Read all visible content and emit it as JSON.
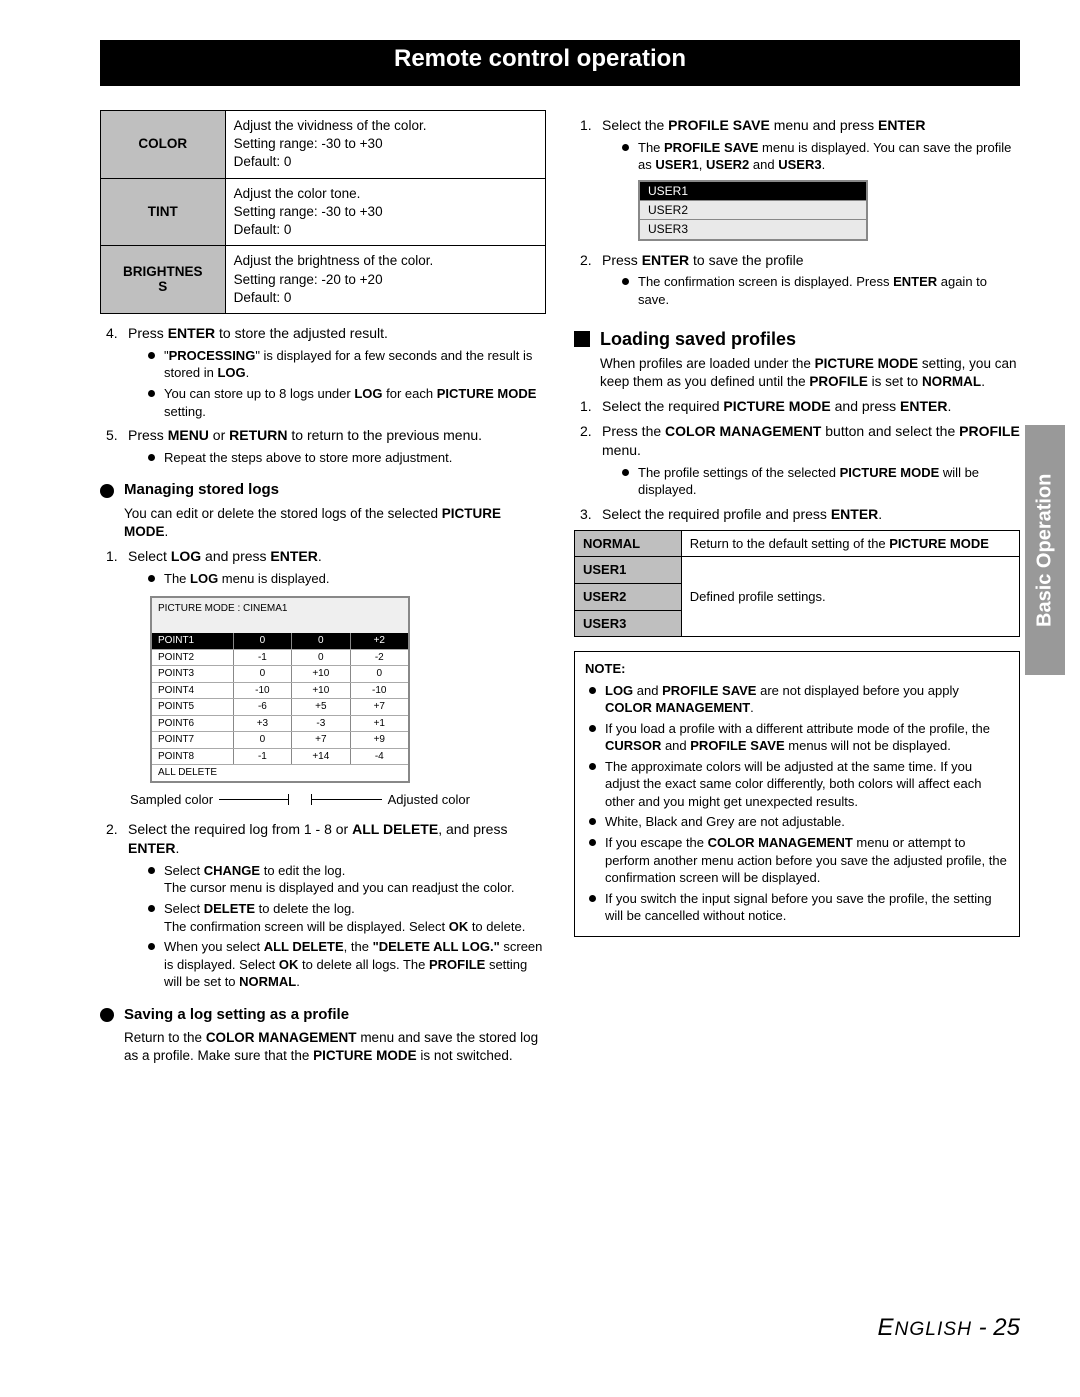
{
  "header": {
    "title": "Remote control operation"
  },
  "side_tab": "Basic Operation",
  "footer": {
    "lang": "ENGLISH",
    "page": "25"
  },
  "left": {
    "settings": [
      {
        "name": "COLOR",
        "l1": "Adjust the vividness of the color.",
        "l2": "Setting range: -30 to +30",
        "l3": "Default: 0"
      },
      {
        "name": "TINT",
        "l1": "Adjust the color tone.",
        "l2": "Setting range: -30 to +30",
        "l3": "Default: 0"
      },
      {
        "name": "BRIGHTNESS",
        "l1": "Adjust the brightness of the color.",
        "l2": "Setting range: -20 to +20",
        "l3": "Default: 0"
      }
    ],
    "step4": {
      "text_a": "Press ",
      "b1": "ENTER",
      "text_b": " to store the adjusted result."
    },
    "step4_bul": [
      {
        "pre": "\"",
        "b1": "PROCESSING",
        "mid": "\" is displayed for a few seconds and the result is stored in ",
        "b2": "LOG",
        "post": "."
      },
      {
        "pre": "You can store up to 8 logs under ",
        "b1": "LOG",
        "mid": " for each ",
        "b2": "PICTURE MODE",
        "post": " setting."
      }
    ],
    "step5": {
      "a": "Press ",
      "b1": "MENU",
      "mid": " or ",
      "b2": "RETURN",
      "post": " to return to the previous menu."
    },
    "step5_bul": "Repeat the steps above to store more adjustment.",
    "manage_head": "Managing stored logs",
    "manage_desc": {
      "a": "You can edit or delete the stored logs of the selected ",
      "b": "PICTURE MODE",
      "c": "."
    },
    "m_step1": {
      "a": "Select ",
      "b1": "LOG",
      "mid": " and press ",
      "b2": "ENTER",
      "post": "."
    },
    "m_step1_bul": {
      "a": "The ",
      "b": "LOG",
      "c": " menu is displayed."
    },
    "log_title": "PICTURE MODE : CINEMA1",
    "log_rows": [
      [
        "POINT1",
        "0",
        "0",
        "+2"
      ],
      [
        "POINT2",
        "-1",
        "0",
        "-2"
      ],
      [
        "POINT3",
        "0",
        "+10",
        "0"
      ],
      [
        "POINT4",
        "-10",
        "+10",
        "-10"
      ],
      [
        "POINT5",
        "-6",
        "+5",
        "+7"
      ],
      [
        "POINT6",
        "+3",
        "-3",
        "+1"
      ],
      [
        "POINT7",
        "0",
        "+7",
        "+9"
      ],
      [
        "POINT8",
        "-1",
        "+14",
        "-4"
      ]
    ],
    "log_last": "ALL DELETE",
    "cap_l": "Sampled color",
    "cap_r": "Adjusted color",
    "m_step2": {
      "a": "Select the required log from 1 - 8 or ",
      "b1": "ALL DELETE",
      "mid": ", and press ",
      "b2": "ENTER",
      "post": "."
    },
    "m_step2_bul1": {
      "a": "Select ",
      "b": "CHANGE",
      "c": " to edit the log.",
      "d": "The cursor menu is displayed and you can readjust the color."
    },
    "m_step2_bul2": {
      "a": "Select ",
      "b": "DELETE",
      "c": " to delete the log.",
      "d": "The confirmation screen will be displayed. Select ",
      "e": "OK",
      "f": " to delete."
    },
    "m_step2_bul3": {
      "a": "When you select ",
      "b": "ALL DELETE",
      "c": ", the ",
      "d": "\"DELETE ALL LOG.\"",
      "e": " screen is displayed. Select ",
      "f": "OK",
      "g": " to delete all logs. The ",
      "h": "PROFILE",
      "i": " setting will be set to ",
      "j": "NORMAL",
      "k": "."
    },
    "save_head": "Saving a log setting as a profile",
    "save_desc": {
      "a": "Return to the ",
      "b": "COLOR MANAGEMENT",
      "c": " menu and save the stored log as a profile. Make sure that the ",
      "d": "PICTURE MODE",
      "e": " is not switched."
    }
  },
  "right": {
    "r_step1": {
      "a": "Select the ",
      "b": "PROFILE SAVE",
      "c": " menu and press ",
      "d": "ENTER"
    },
    "r_step1_bul": {
      "a": "The ",
      "b": "PROFILE SAVE",
      "c": " menu is displayed. You can save the profile as ",
      "d": "USER1",
      "e": ", ",
      "f": "USER2",
      "g": " and ",
      "h": "USER3",
      "i": "."
    },
    "users": [
      "USER1",
      "USER2",
      "USER3"
    ],
    "r_step2": {
      "a": "Press ",
      "b": "ENTER",
      "c": " to save the profile"
    },
    "r_step2_bul": {
      "a": "The confirmation screen is displayed. Press ",
      "b": "ENTER",
      "c": " again to save."
    },
    "load_head": "Loading saved profiles",
    "load_desc": {
      "a": "When profiles are loaded under the ",
      "b": "PICTURE MODE",
      "c": " setting, you can keep them as you defined until the ",
      "d": "PROFILE",
      "e": " is set to ",
      "f": "NORMAL",
      "g": "."
    },
    "l_step1": {
      "a": "Select the required ",
      "b": "PICTURE MODE",
      "c": " and press ",
      "d": "ENTER",
      "e": "."
    },
    "l_step2": {
      "a": "Press the ",
      "b": "COLOR MANAGEMENT",
      "c": " button and select the ",
      "d": "PROFILE",
      "e": " menu."
    },
    "l_step2_bul": {
      "a": "The profile settings of the selected ",
      "b": "PICTURE MODE",
      "c": " will be displayed."
    },
    "l_step3": {
      "a": "Select the required profile and press ",
      "b": "ENTER",
      "c": "."
    },
    "ptable": {
      "normal": "NORMAL",
      "normal_desc_a": "Return to the default setting of the ",
      "normal_desc_b": "PICTURE MODE",
      "u1": "USER1",
      "u2": "USER2",
      "u3": "USER3",
      "udesc": "Defined profile settings."
    },
    "note_title": "NOTE:",
    "notes": [
      {
        "segs": [
          [
            "b",
            "LOG"
          ],
          [
            "t",
            " and "
          ],
          [
            "b",
            "PROFILE SAVE"
          ],
          [
            "t",
            " are not displayed before you apply "
          ],
          [
            "b",
            "COLOR MANAGEMENT"
          ],
          [
            "t",
            "."
          ]
        ]
      },
      {
        "segs": [
          [
            "t",
            "If you load a profile with a different attribute mode of the profile, the "
          ],
          [
            "b",
            "CURSOR"
          ],
          [
            "t",
            " and "
          ],
          [
            "b",
            "PROFILE SAVE"
          ],
          [
            "t",
            " menus will not be displayed."
          ]
        ]
      },
      {
        "segs": [
          [
            "t",
            "The approximate colors will be adjusted at the same time. If you adjust the exact same color differently, both colors will affect each other and you might get unexpected results."
          ]
        ]
      },
      {
        "segs": [
          [
            "t",
            "White, Black and Grey are not adjustable."
          ]
        ]
      },
      {
        "segs": [
          [
            "t",
            "If you escape the "
          ],
          [
            "b",
            "COLOR MANAGEMENT"
          ],
          [
            "t",
            " menu or attempt to perform another menu action before you save the adjusted profile, the confirmation screen will be displayed."
          ]
        ]
      },
      {
        "segs": [
          [
            "t",
            "If you switch the input signal before you save the profile, the setting will be cancelled without notice."
          ]
        ]
      }
    ]
  }
}
